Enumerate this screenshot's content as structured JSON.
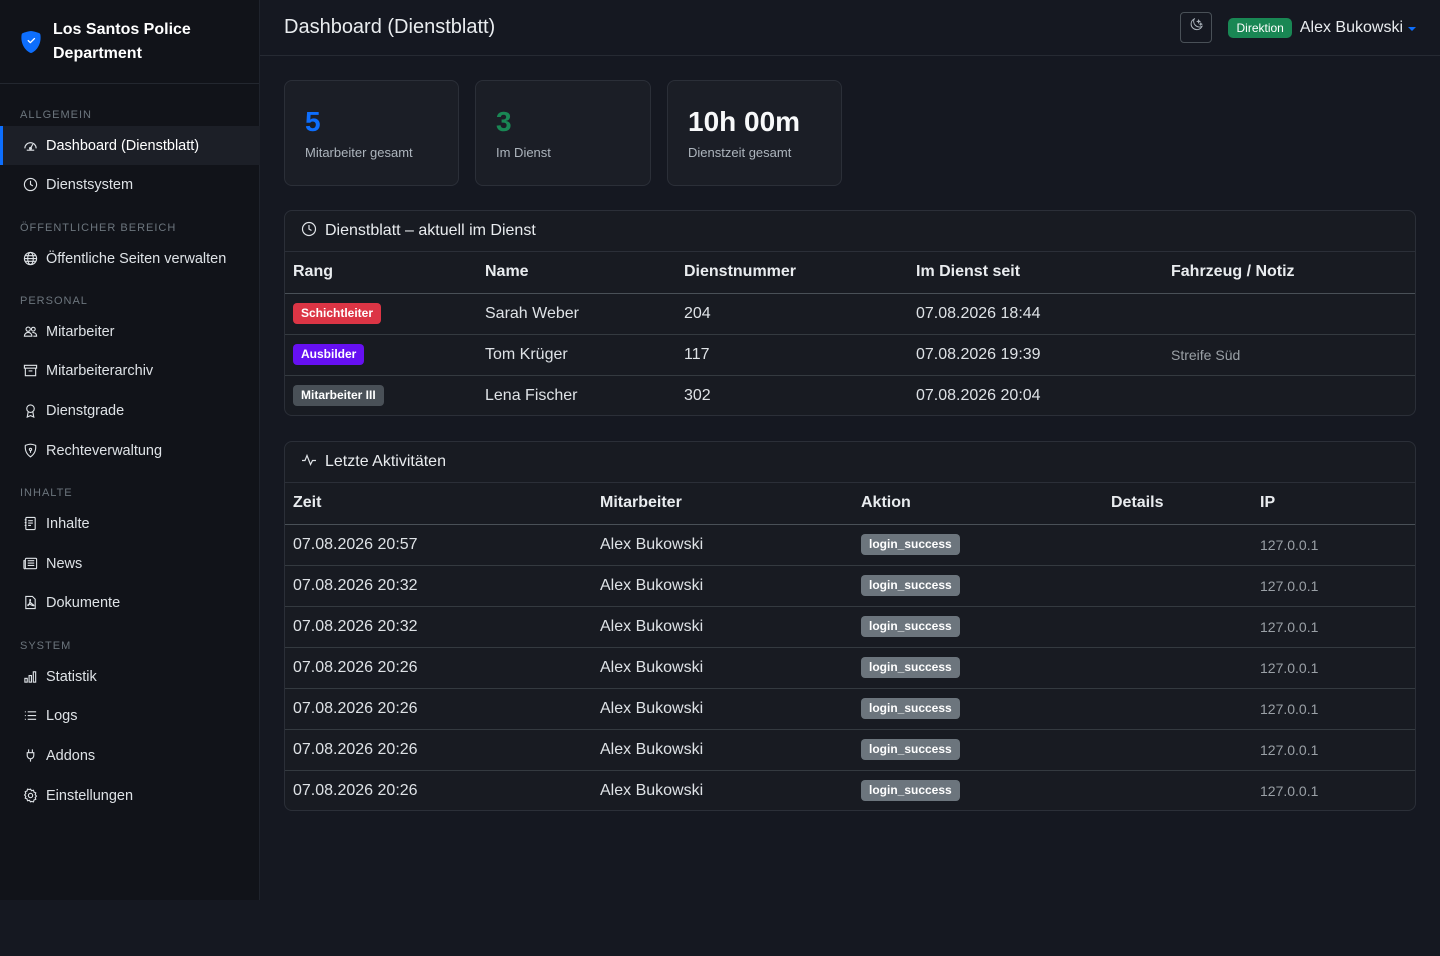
{
  "brand": {
    "name": "Los Santos Police Department"
  },
  "nav": {
    "sections": [
      {
        "title": "ALLGEMEIN",
        "items": [
          {
            "label": "Dashboard (Dienstblatt)",
            "icon": "speedometer-icon"
          },
          {
            "label": "Dienstsystem",
            "icon": "clock-icon"
          }
        ]
      },
      {
        "title": "ÖFFENTLICHER BEREICH",
        "items": [
          {
            "label": "Öffentliche Seiten verwalten",
            "icon": "globe-icon"
          }
        ]
      },
      {
        "title": "PERSONAL",
        "items": [
          {
            "label": "Mitarbeiter",
            "icon": "people-icon"
          },
          {
            "label": "Mitarbeiterarchiv",
            "icon": "archive-icon"
          },
          {
            "label": "Dienstgrade",
            "icon": "award-icon"
          },
          {
            "label": "Rechteverwaltung",
            "icon": "shield-icon"
          }
        ]
      },
      {
        "title": "INHALTE",
        "items": [
          {
            "label": "Inhalte",
            "icon": "journal-icon"
          },
          {
            "label": "News",
            "icon": "newspaper-icon"
          },
          {
            "label": "Dokumente",
            "icon": "file-pdf-icon"
          }
        ]
      },
      {
        "title": "SYSTEM",
        "items": [
          {
            "label": "Statistik",
            "icon": "bar-chart-icon"
          },
          {
            "label": "Logs",
            "icon": "list-icon"
          },
          {
            "label": "Addons",
            "icon": "plug-icon"
          },
          {
            "label": "Einstellungen",
            "icon": "gear-icon"
          }
        ]
      }
    ]
  },
  "header": {
    "title": "Dashboard (Dienstblatt)",
    "role": "Direktion",
    "user": "Alex Bukowski"
  },
  "stats": [
    {
      "value": "5",
      "label": "Mitarbeiter gesamt",
      "color": "#0d6efd"
    },
    {
      "value": "3",
      "label": "Im Dienst",
      "color": "#198754"
    },
    {
      "value": "10h 00m",
      "label": "Dienstzeit gesamt",
      "color": "#f8f9fa"
    }
  ],
  "duty": {
    "title": "Dienstblatt – aktuell im Dienst",
    "columns": [
      "Rang",
      "Name",
      "Dienstnummer",
      "Im Dienst seit",
      "Fahrzeug / Notiz"
    ],
    "rows": [
      {
        "rank": "Schichtleiter",
        "rank_color": "#dc3545",
        "name": "Sarah Weber",
        "number": "204",
        "since": "07.08.2026 18:44",
        "note": ""
      },
      {
        "rank": "Ausbilder",
        "rank_color": "#6610f2",
        "name": "Tom Krüger",
        "number": "117",
        "since": "07.08.2026 19:39",
        "note": "Streife Süd"
      },
      {
        "rank": "Mitarbeiter III",
        "rank_color": "#495057",
        "name": "Lena Fischer",
        "number": "302",
        "since": "07.08.2026 20:04",
        "note": ""
      }
    ]
  },
  "activity": {
    "title": "Letzte Aktivitäten",
    "columns": [
      "Zeit",
      "Mitarbeiter",
      "Aktion",
      "Details",
      "IP"
    ],
    "rows": [
      {
        "time": "07.08.2026 20:57",
        "user": "Alex Bukowski",
        "action": "login_success",
        "details": "",
        "ip": "127.0.0.1"
      },
      {
        "time": "07.08.2026 20:32",
        "user": "Alex Bukowski",
        "action": "login_success",
        "details": "",
        "ip": "127.0.0.1"
      },
      {
        "time": "07.08.2026 20:32",
        "user": "Alex Bukowski",
        "action": "login_success",
        "details": "",
        "ip": "127.0.0.1"
      },
      {
        "time": "07.08.2026 20:26",
        "user": "Alex Bukowski",
        "action": "login_success",
        "details": "",
        "ip": "127.0.0.1"
      },
      {
        "time": "07.08.2026 20:26",
        "user": "Alex Bukowski",
        "action": "login_success",
        "details": "",
        "ip": "127.0.0.1"
      },
      {
        "time": "07.08.2026 20:26",
        "user": "Alex Bukowski",
        "action": "login_success",
        "details": "",
        "ip": "127.0.0.1"
      },
      {
        "time": "07.08.2026 20:26",
        "user": "Alex Bukowski",
        "action": "login_success",
        "details": "",
        "ip": "127.0.0.1"
      }
    ]
  }
}
